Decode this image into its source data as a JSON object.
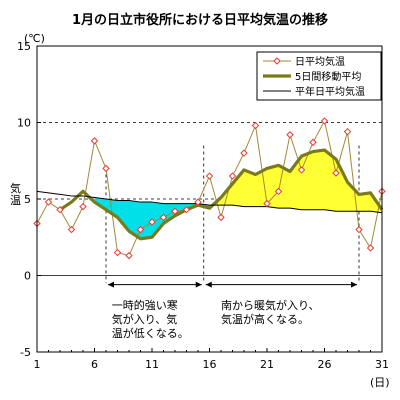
{
  "chart_data": {
    "type": "line",
    "title": "1月の日立市役所における日平均気温の推移",
    "yunit": "(℃)",
    "ylabel": "気温",
    "xunit": "(日)",
    "ylim": [
      -5,
      15
    ],
    "xlim": [
      1,
      31
    ],
    "yticks": [
      "-5",
      "0",
      "5",
      "10",
      "15"
    ],
    "xticks": [
      "1",
      "6",
      "11",
      "16",
      "21",
      "26",
      "31"
    ],
    "grid": "dashed horizontal at 5 and 10",
    "legend_position": "top-right",
    "x": [
      1,
      2,
      3,
      4,
      5,
      6,
      7,
      8,
      9,
      10,
      11,
      12,
      13,
      14,
      15,
      16,
      17,
      18,
      19,
      20,
      21,
      22,
      23,
      24,
      25,
      26,
      27,
      28,
      29,
      30,
      31
    ],
    "series": [
      {
        "name": "日平均気温",
        "style": "line-with-diamond-markers",
        "color": "#e83a2f",
        "values": [
          3.4,
          4.8,
          4.3,
          3.0,
          4.5,
          8.8,
          7.0,
          1.5,
          1.3,
          3.0,
          3.5,
          3.8,
          4.2,
          4.3,
          4.8,
          6.5,
          3.8,
          6.5,
          8.0,
          9.8,
          4.7,
          5.5,
          9.2,
          6.9,
          8.7,
          10.1,
          6.7,
          9.4,
          3.0,
          1.8,
          5.5
        ]
      },
      {
        "name": "5日間移動平均",
        "style": "thick-line",
        "color": "#7a7a1a",
        "values": [
          null,
          null,
          4.3,
          4.8,
          5.5,
          4.8,
          4.3,
          3.8,
          2.9,
          2.4,
          2.5,
          3.4,
          3.9,
          4.3,
          4.6,
          4.4,
          5.1,
          6.0,
          6.9,
          6.6,
          7.0,
          7.2,
          6.8,
          7.8,
          8.1,
          8.2,
          7.6,
          6.1,
          5.3,
          5.4,
          4.3
        ]
      },
      {
        "name": "平年日平均気温",
        "style": "thin-line",
        "color": "#000000",
        "values": [
          5.5,
          5.4,
          5.3,
          5.2,
          5.2,
          5.1,
          5.0,
          4.9,
          4.9,
          4.8,
          4.8,
          4.7,
          4.7,
          4.7,
          4.7,
          4.6,
          4.6,
          4.6,
          4.5,
          4.5,
          4.5,
          4.4,
          4.4,
          4.3,
          4.3,
          4.3,
          4.2,
          4.2,
          4.2,
          4.2,
          4.1
        ]
      }
    ],
    "fill_colors": {
      "below_normal": "#00e0e8",
      "above_normal": "#ffff33"
    },
    "annotations": [
      {
        "text_lines": [
          "一時的強い寒",
          "気が入り、気",
          "温が低くなる。"
        ],
        "from": 7,
        "to": 15.5
      },
      {
        "text_lines": [
          "南から暖気が入り、",
          "気温が高くなる。"
        ],
        "from": 15.5,
        "to": 29
      }
    ]
  }
}
